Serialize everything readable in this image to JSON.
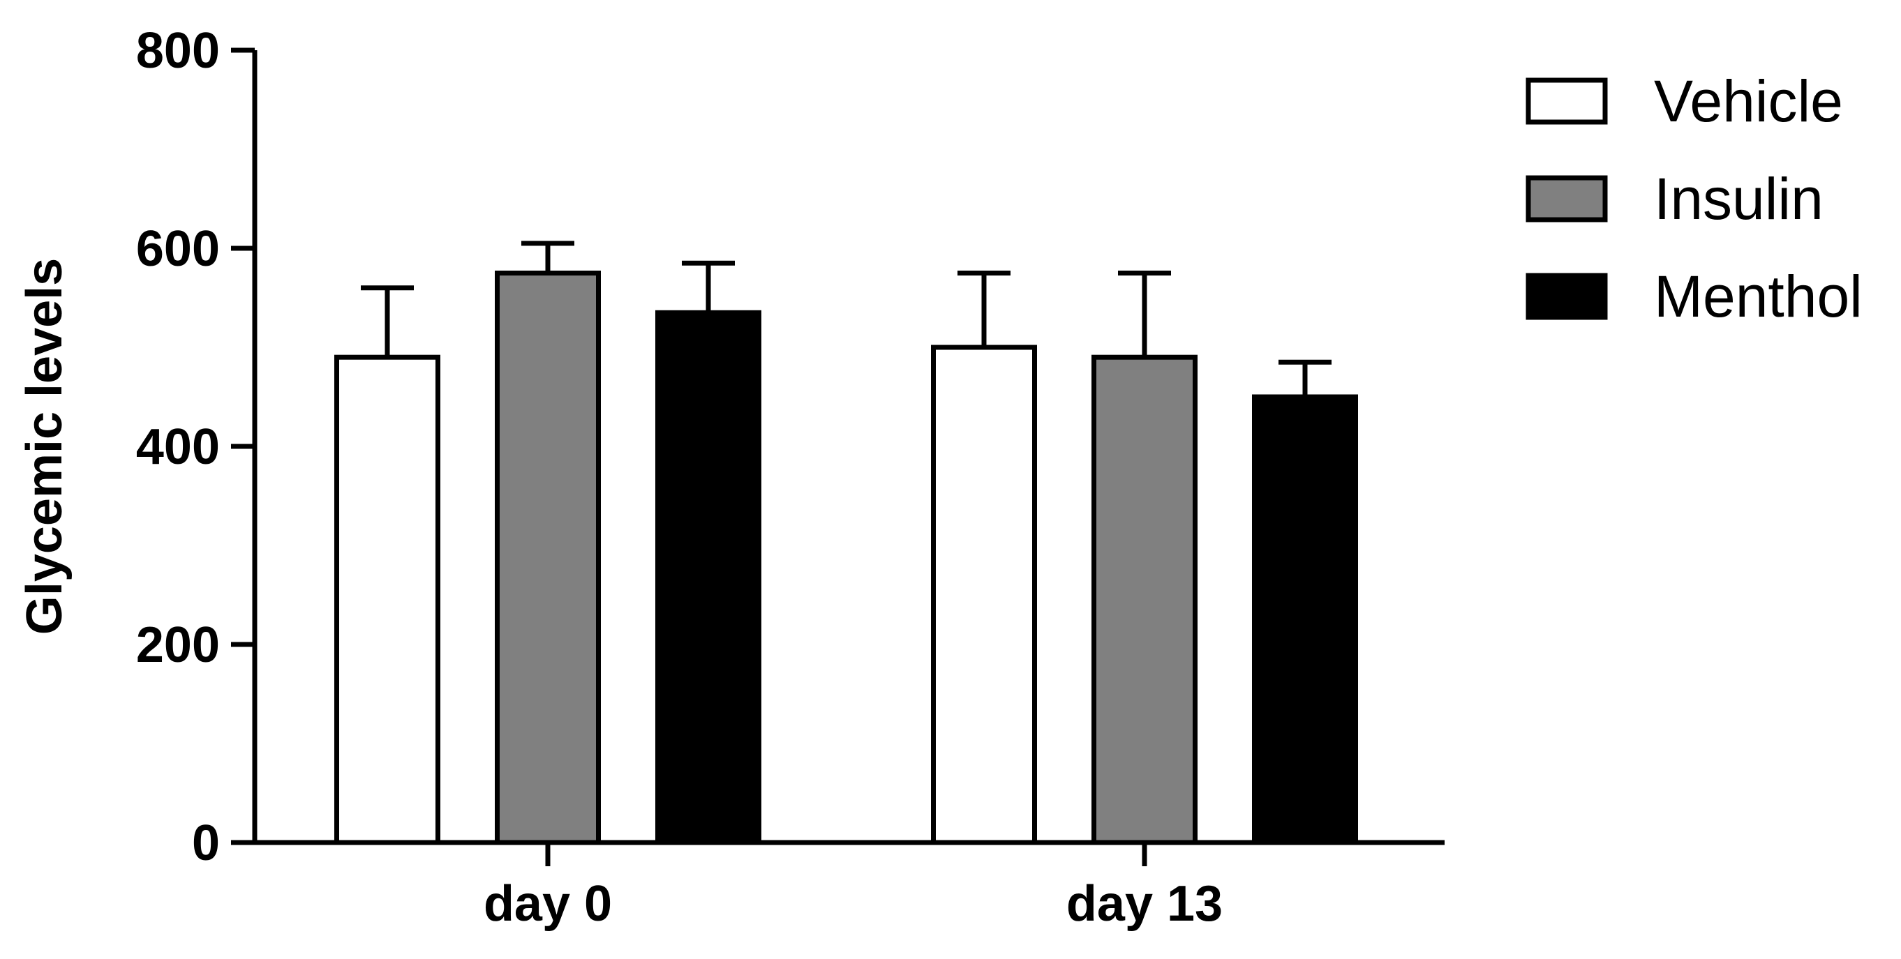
{
  "chart_data": {
    "type": "bar",
    "title": "",
    "xlabel": "",
    "ylabel": "Glycemic levels",
    "ylim": [
      0,
      800
    ],
    "yticks": [
      0,
      200,
      400,
      600,
      800
    ],
    "categories": [
      "day 0",
      "day 13"
    ],
    "series": [
      {
        "name": "Vehicle",
        "color": "#ffffff",
        "values": [
          490,
          500
        ],
        "errors": [
          70,
          75
        ]
      },
      {
        "name": "Insulin",
        "color": "#808080",
        "values": [
          575,
          490
        ],
        "errors": [
          30,
          85
        ]
      },
      {
        "name": "Menthol",
        "color": "#000000",
        "values": [
          535,
          450
        ],
        "errors": [
          50,
          35
        ]
      }
    ],
    "error_bars": "upper",
    "grid": false,
    "legend_position": "top-right"
  }
}
